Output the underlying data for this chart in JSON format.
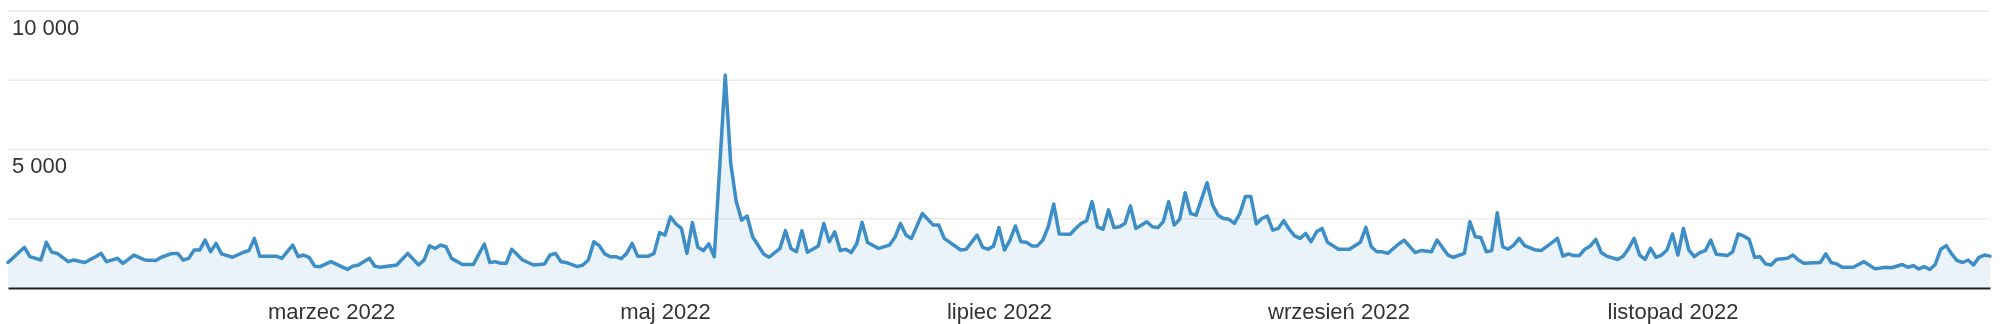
{
  "chart_data": {
    "type": "area",
    "xlim": [
      "2022-01-01",
      "2022-12-29"
    ],
    "ylim": [
      0,
      10000
    ],
    "xticks": [
      {
        "value": "2022-03-01",
        "label": "marzec 2022"
      },
      {
        "value": "2022-05-01",
        "label": "maj 2022"
      },
      {
        "value": "2022-07-01",
        "label": "lipiec 2022"
      },
      {
        "value": "2022-09-01",
        "label": "wrzesień 2022"
      },
      {
        "value": "2022-11-01",
        "label": "listopad 2022"
      }
    ],
    "yticks": [
      {
        "value": 2500,
        "label": null
      },
      {
        "value": 5000,
        "label": "5 000"
      },
      {
        "value": 7500,
        "label": null
      },
      {
        "value": 10000,
        "label": "10 000"
      }
    ],
    "grid": "y",
    "series": [
      {
        "color": "#3d8ec7",
        "x": [
          "2022-01-01",
          "2022-01-04",
          "2022-01-05",
          "2022-01-07",
          "2022-01-08",
          "2022-01-09",
          "2022-01-10",
          "2022-01-12",
          "2022-01-13",
          "2022-01-15",
          "2022-01-17",
          "2022-01-18",
          "2022-01-19",
          "2022-01-21",
          "2022-01-22",
          "2022-01-24",
          "2022-01-26",
          "2022-01-28",
          "2022-01-29",
          "2022-01-31",
          "2022-02-01",
          "2022-02-02",
          "2022-02-03",
          "2022-02-04",
          "2022-02-05",
          "2022-02-06",
          "2022-02-07",
          "2022-02-08",
          "2022-02-09",
          "2022-02-11",
          "2022-02-13",
          "2022-02-14",
          "2022-02-15",
          "2022-02-16",
          "2022-02-18",
          "2022-02-19",
          "2022-02-20",
          "2022-02-22",
          "2022-02-23",
          "2022-02-24",
          "2022-02-25",
          "2022-02-26",
          "2022-02-27",
          "2022-03-01",
          "2022-03-04",
          "2022-03-05",
          "2022-03-06",
          "2022-03-08",
          "2022-03-09",
          "2022-03-10",
          "2022-03-13",
          "2022-03-15",
          "2022-03-17",
          "2022-03-18",
          "2022-03-19",
          "2022-03-20",
          "2022-03-21",
          "2022-03-22",
          "2022-03-23",
          "2022-03-25",
          "2022-03-27",
          "2022-03-29",
          "2022-03-30",
          "2022-03-31",
          "2022-04-01",
          "2022-04-02",
          "2022-04-03",
          "2022-04-05",
          "2022-04-07",
          "2022-04-09",
          "2022-04-10",
          "2022-04-11",
          "2022-04-12",
          "2022-04-13",
          "2022-04-15",
          "2022-04-16",
          "2022-04-17",
          "2022-04-18",
          "2022-04-19",
          "2022-04-20",
          "2022-04-21",
          "2022-04-22",
          "2022-04-23",
          "2022-04-24",
          "2022-04-25",
          "2022-04-26",
          "2022-04-28",
          "2022-04-29",
          "2022-04-30",
          "2022-05-01",
          "2022-05-02",
          "2022-05-03",
          "2022-05-04",
          "2022-05-05",
          "2022-05-06",
          "2022-05-07",
          "2022-05-08",
          "2022-05-09",
          "2022-05-10",
          "2022-05-12",
          "2022-05-13",
          "2022-05-14",
          "2022-05-15",
          "2022-05-16",
          "2022-05-17",
          "2022-05-19",
          "2022-05-20",
          "2022-05-22",
          "2022-05-23",
          "2022-05-24",
          "2022-05-25",
          "2022-05-26",
          "2022-05-27",
          "2022-05-29",
          "2022-05-30",
          "2022-05-31",
          "2022-06-01",
          "2022-06-02",
          "2022-06-03",
          "2022-06-04",
          "2022-06-05",
          "2022-06-06",
          "2022-06-07",
          "2022-06-09",
          "2022-06-11",
          "2022-06-12",
          "2022-06-13",
          "2022-06-14",
          "2022-06-15",
          "2022-06-17",
          "2022-06-19",
          "2022-06-20",
          "2022-06-21",
          "2022-06-24",
          "2022-06-25",
          "2022-06-27",
          "2022-06-28",
          "2022-06-29",
          "2022-06-30",
          "2022-07-01",
          "2022-07-02",
          "2022-07-03",
          "2022-07-04",
          "2022-07-05",
          "2022-07-06",
          "2022-07-07",
          "2022-07-08",
          "2022-07-09",
          "2022-07-10",
          "2022-07-11",
          "2022-07-12",
          "2022-07-14",
          "2022-07-15",
          "2022-07-16",
          "2022-07-17",
          "2022-07-18",
          "2022-07-19",
          "2022-07-20",
          "2022-07-21",
          "2022-07-22",
          "2022-07-23",
          "2022-07-24",
          "2022-07-25",
          "2022-07-26",
          "2022-07-28",
          "2022-07-29",
          "2022-07-30",
          "2022-07-31",
          "2022-08-01",
          "2022-08-02",
          "2022-08-03",
          "2022-08-04",
          "2022-08-05",
          "2022-08-06",
          "2022-08-08",
          "2022-08-09",
          "2022-08-10",
          "2022-08-11",
          "2022-08-12",
          "2022-08-13",
          "2022-08-14",
          "2022-08-15",
          "2022-08-16",
          "2022-08-17",
          "2022-08-18",
          "2022-08-19",
          "2022-08-20",
          "2022-08-21",
          "2022-08-22",
          "2022-08-23",
          "2022-08-24",
          "2022-08-25",
          "2022-08-26",
          "2022-08-27",
          "2022-08-28",
          "2022-08-29",
          "2022-08-30",
          "2022-09-01",
          "2022-09-03",
          "2022-09-05",
          "2022-09-06",
          "2022-09-07",
          "2022-09-08",
          "2022-09-09",
          "2022-09-10",
          "2022-09-12",
          "2022-09-13",
          "2022-09-15",
          "2022-09-16",
          "2022-09-18",
          "2022-09-19",
          "2022-09-21",
          "2022-09-22",
          "2022-09-24",
          "2022-09-25",
          "2022-09-26",
          "2022-09-27",
          "2022-09-28",
          "2022-09-29",
          "2022-09-30",
          "2022-10-01",
          "2022-10-02",
          "2022-10-03",
          "2022-10-04",
          "2022-10-05",
          "2022-10-07",
          "2022-10-08",
          "2022-10-10",
          "2022-10-11",
          "2022-10-12",
          "2022-10-13",
          "2022-10-14",
          "2022-10-15",
          "2022-10-16",
          "2022-10-17",
          "2022-10-18",
          "2022-10-19",
          "2022-10-20",
          "2022-10-22",
          "2022-10-23",
          "2022-10-24",
          "2022-10-25",
          "2022-10-26",
          "2022-10-27",
          "2022-10-28",
          "2022-10-29",
          "2022-10-30",
          "2022-10-31",
          "2022-11-01",
          "2022-11-02",
          "2022-11-03",
          "2022-11-04",
          "2022-11-05",
          "2022-11-06",
          "2022-11-07",
          "2022-11-08",
          "2022-11-09",
          "2022-11-11",
          "2022-11-12",
          "2022-11-13",
          "2022-11-14",
          "2022-11-15",
          "2022-11-16",
          "2022-11-17",
          "2022-11-18",
          "2022-11-19",
          "2022-11-20",
          "2022-11-22",
          "2022-11-23",
          "2022-11-24",
          "2022-11-25",
          "2022-11-28",
          "2022-11-29",
          "2022-11-30",
          "2022-12-01",
          "2022-12-02",
          "2022-12-04",
          "2022-12-06",
          "2022-12-08",
          "2022-12-10",
          "2022-12-11",
          "2022-12-13",
          "2022-12-14",
          "2022-12-15",
          "2022-12-16",
          "2022-12-17",
          "2022-12-18",
          "2022-12-19",
          "2022-12-20",
          "2022-12-21",
          "2022-12-22",
          "2022-12-23",
          "2022-12-24",
          "2022-12-25",
          "2022-12-26",
          "2022-12-27",
          "2022-12-28",
          "2022-12-29"
        ],
        "values": [
          920,
          1470,
          1130,
          1010,
          1650,
          1290,
          1250,
          950,
          1010,
          920,
          1130,
          1250,
          950,
          1070,
          890,
          1190,
          1010,
          990,
          1110,
          1250,
          1250,
          1010,
          1070,
          1370,
          1370,
          1730,
          1310,
          1610,
          1230,
          1110,
          1290,
          1350,
          1790,
          1150,
          1150,
          1150,
          1070,
          1550,
          1130,
          1190,
          1110,
          790,
          770,
          950,
          670,
          790,
          830,
          1070,
          790,
          750,
          830,
          1250,
          830,
          1010,
          1520,
          1430,
          1550,
          1490,
          1070,
          850,
          850,
          1590,
          920,
          950,
          890,
          890,
          1400,
          1010,
          830,
          870,
          1190,
          1250,
          950,
          920,
          770,
          830,
          1010,
          1670,
          1530,
          1230,
          1130,
          1130,
          1060,
          1250,
          1610,
          1150,
          1150,
          1250,
          2000,
          1910,
          2570,
          2310,
          2150,
          1250,
          2360,
          1470,
          1350,
          1590,
          1130,
          7690,
          4500,
          3120,
          2450,
          2600,
          1850,
          1230,
          1110,
          1430,
          2070,
          1430,
          1310,
          2070,
          1290,
          1520,
          2330,
          1670,
          2030,
          1350,
          1400,
          1280,
          1590,
          2370,
          1640,
          1430,
          1550,
          1830,
          2330,
          1910,
          1790,
          2690,
          2270,
          2270,
          1790,
          1370,
          1400,
          1910,
          1470,
          1400,
          1520,
          2180,
          1370,
          1730,
          2240,
          1670,
          1650,
          1520,
          1520,
          1730,
          2210,
          3030,
          1950,
          1940,
          2150,
          2330,
          2430,
          3120,
          2210,
          2120,
          2820,
          2180,
          2210,
          2330,
          2960,
          2150,
          2390,
          2210,
          2180,
          2390,
          3120,
          2270,
          2480,
          3440,
          2690,
          2630,
          3800,
          3000,
          2630,
          2510,
          2480,
          2330,
          2690,
          3300,
          3300,
          2310,
          2510,
          2600,
          2090,
          2150,
          2430,
          2120,
          1880,
          1790,
          1970,
          1670,
          2030,
          2150,
          1650,
          1400,
          1400,
          1650,
          2190,
          1490,
          1310,
          1310,
          1250,
          1590,
          1730,
          1280,
          1350,
          1310,
          1730,
          1190,
          1110,
          1250,
          2390,
          1850,
          1820,
          1310,
          1350,
          2720,
          1490,
          1400,
          1550,
          1790,
          1530,
          1370,
          1350,
          1640,
          1790,
          1150,
          1230,
          1170,
          1170,
          1400,
          1520,
          1760,
          1280,
          1150,
          1030,
          1150,
          1430,
          1790,
          1190,
          1030,
          1430,
          1110,
          1190,
          1370,
          1950,
          1190,
          2150,
          1370,
          1130,
          1280,
          1350,
          1730,
          1220,
          1170,
          1310,
          1950,
          1880,
          1760,
          1110,
          1130,
          870,
          830,
          1030,
          1070,
          1190,
          1010,
          890,
          920,
          1230,
          920,
          870,
          750,
          750,
          950,
          690,
          750,
          730,
          850,
          750,
          810,
          690,
          770,
          670,
          850,
          1400,
          1530,
          1230,
          990,
          920,
          1010,
          830,
          1110,
          1190,
          1150
        ]
      }
    ]
  }
}
